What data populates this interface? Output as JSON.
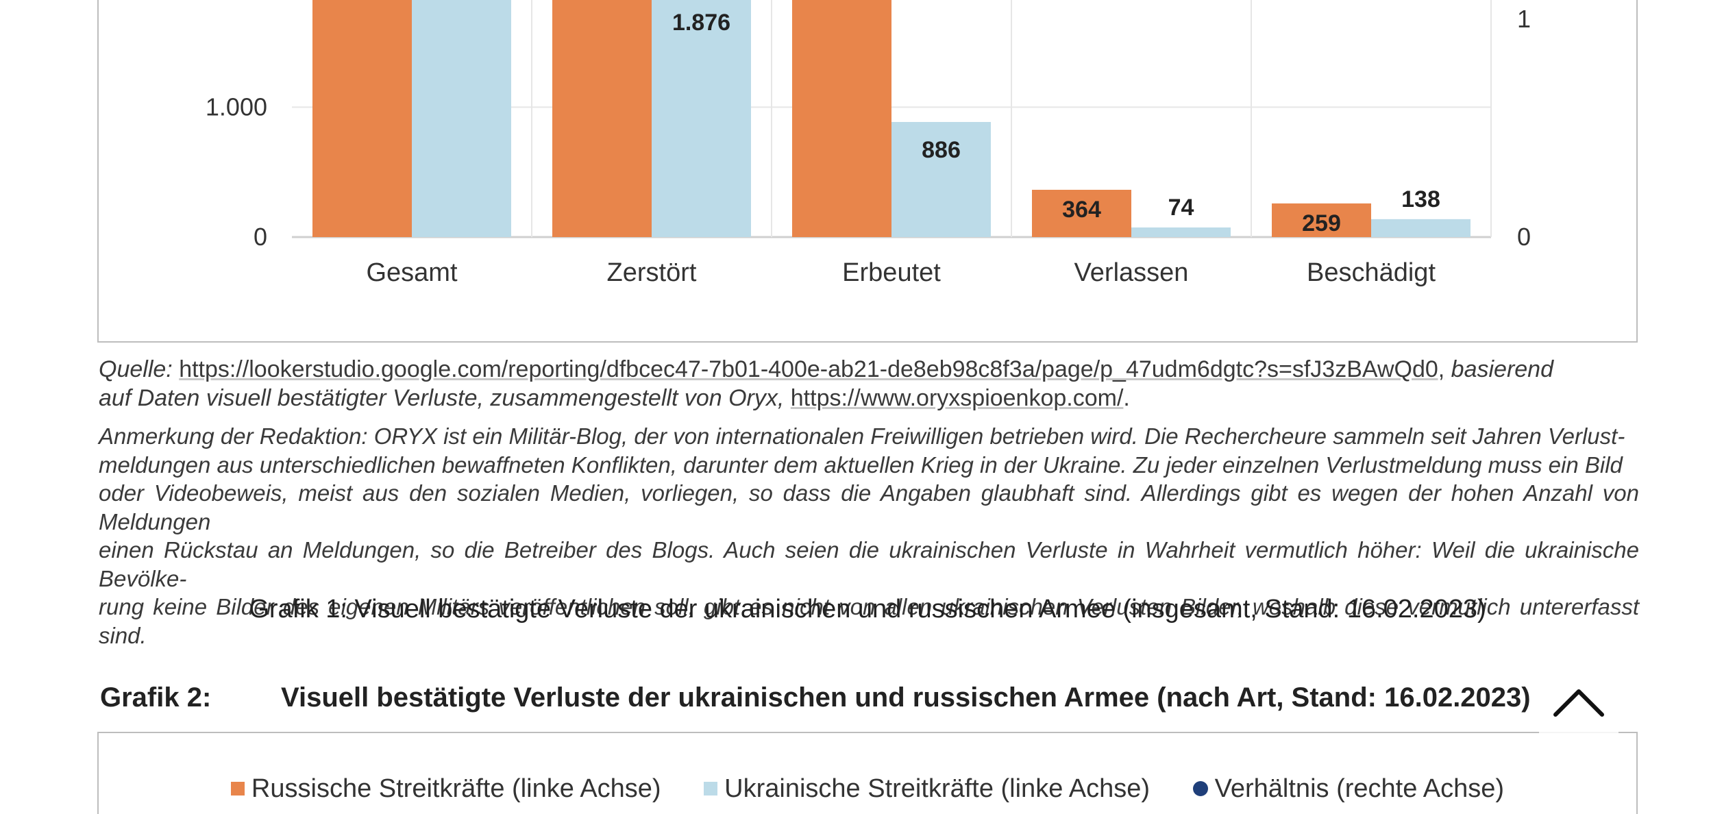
{
  "chart_data": {
    "type": "bar",
    "categories": [
      "Gesamt",
      "Zerstört",
      "Erbeutet",
      "Verlassen",
      "Beschädigt"
    ],
    "series": [
      {
        "name": "Russische Streitkräfte (linke Achse)",
        "color": "#e8854b",
        "values": [
          null,
          null,
          null,
          364,
          259
        ],
        "labels": [
          "",
          "",
          "",
          "364",
          "259"
        ]
      },
      {
        "name": "Ukrainische Streitkräfte (linke Achse)",
        "color": "#bcdbe8",
        "values": [
          null,
          1876,
          886,
          74,
          138
        ],
        "labels": [
          "",
          "1.876",
          "886",
          "74",
          "138"
        ]
      }
    ],
    "left_axis_ticks": [
      {
        "value": 0,
        "label": "0"
      },
      {
        "value": 1000,
        "label": "1.000"
      }
    ],
    "right_axis_ticks": [
      {
        "value": 0,
        "label": "0"
      },
      {
        "value": 1,
        "label": "1"
      }
    ],
    "ylim_visible": [
      0,
      1830
    ],
    "grid": true
  },
  "source": {
    "label": "Quelle:",
    "url": "https://lookerstudio.google.com/reporting/dfbcec47-7b01-400e-ab21-de8eb98c8f3a/page/p_47udm6dgtc?s=sfJ3zBAwQd0,",
    "basis_1": "basierend",
    "basis_2": "auf Daten visuell bestätigter Verluste, zusammengestellt von Oryx,",
    "oryx_url": "https://www.oryxspioenkop.com/",
    "end": "."
  },
  "note": {
    "lines": [
      "Anmerkung der Redaktion: ORYX ist ein Militär-Blog, der von internationalen Freiwilligen betrieben wird. Die Rechercheure sammeln seit Jahren Verlust-",
      "meldungen aus unterschiedlichen bewaffneten Konflikten, darunter dem aktuellen Krieg in der Ukraine. Zu jeder einzelnen Verlustmeldung muss ein Bild",
      "oder Videobeweis, meist aus den sozialen Medien, vorliegen, so dass die Angaben glaubhaft sind. Allerdings gibt es wegen der hohen Anzahl von Meldungen",
      "einen Rückstau an Meldungen, so die Betreiber des Blogs. Auch seien die ukrainischen Verluste in Wahrheit vermutlich höher: Weil die ukrainische Bevölke-",
      "rung keine Bilder des eigenen Militärs veröffentlichen soll, gibt es nicht von allen ukrainischen Verlusten Bilder, weshalb diese vermutlich untererfasst sind."
    ]
  },
  "caption": "Grafik 1: Visuell bestätigte Verluste der ukrainischen und russischen Armee (insgesamt, Stand: 16.02.2023)",
  "grafik2": {
    "label": "Grafik 2:",
    "title": "Visuell bestätigte Verluste der ukrainischen und russischen Armee (nach Art, Stand: 16.02.2023)",
    "legend": [
      {
        "name": "Russische Streitkräfte (linke Achse)",
        "color": "#e8854b",
        "marker": "square"
      },
      {
        "name": "Ukrainische Streitkräfte (linke Achse)",
        "color": "#bcdbe8",
        "marker": "square"
      },
      {
        "name": "Verhältnis (rechte Achse)",
        "color": "#1f3f7a",
        "marker": "circle"
      }
    ]
  },
  "scroll_top_icon": "chevron-up-icon"
}
